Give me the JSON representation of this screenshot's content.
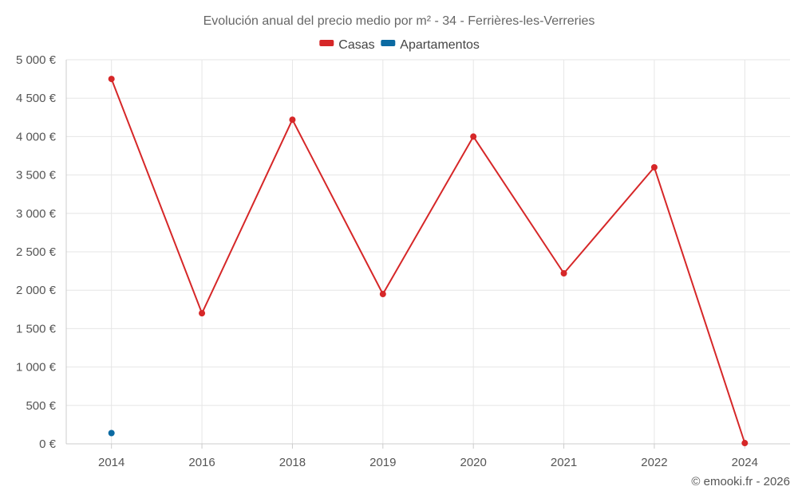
{
  "chart_data": {
    "type": "line",
    "title": "Evolución anual del precio medio por m² - 34 - Ferrières-les-Verreries",
    "categories": [
      "2014",
      "2016",
      "2018",
      "2019",
      "2020",
      "2021",
      "2022",
      "2024"
    ],
    "y_ticks": [
      "0 €",
      "500 €",
      "1 000 €",
      "1 500 €",
      "2 000 €",
      "2 500 €",
      "3 000 €",
      "3 500 €",
      "4 000 €",
      "4 500 €",
      "5 000 €"
    ],
    "ylim": [
      0,
      5000
    ],
    "grid": true,
    "legend_position": "top-center",
    "series": [
      {
        "name": "Casas",
        "color": "#d62728",
        "values": [
          4750,
          1700,
          4220,
          1950,
          4000,
          2220,
          3600,
          10
        ]
      },
      {
        "name": "Apartamentos",
        "color": "#0b6aa2",
        "values": [
          140,
          null,
          null,
          null,
          null,
          null,
          null,
          null
        ]
      }
    ]
  },
  "credit": "© emooki.fr - 2026"
}
